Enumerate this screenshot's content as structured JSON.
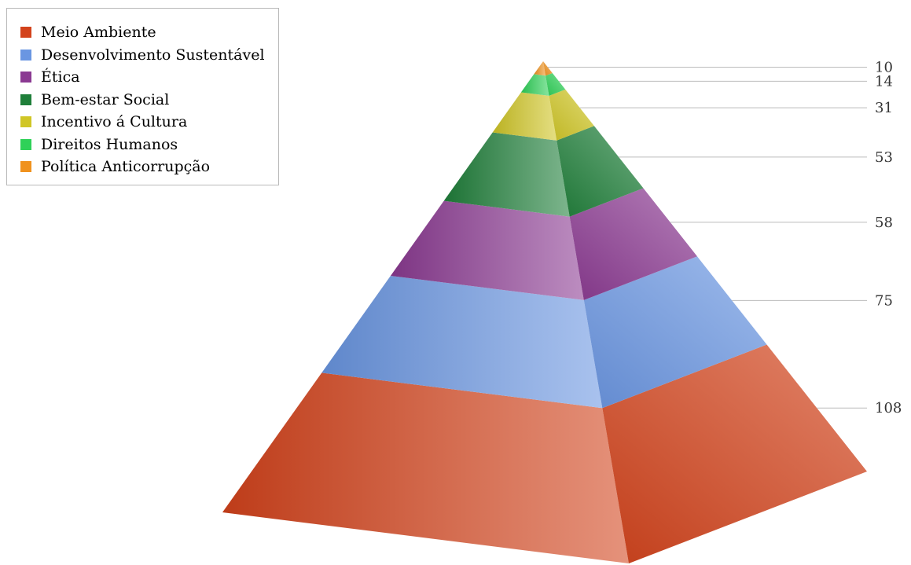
{
  "chart_data": {
    "type": "pyramid",
    "title": "",
    "legend_position": "top-left",
    "categories": [
      "Meio Ambiente",
      "Desenvolvimento Sustentável",
      "Ética",
      "Bem-estar Social",
      "Incentivo á Cultura",
      "Direitos Humanos",
      "Política Anticorrupção"
    ],
    "values": [
      108,
      75,
      58,
      53,
      31,
      14,
      10
    ],
    "colors": [
      "#d3431c",
      "#6a96e2",
      "#8b3a92",
      "#1f7f3a",
      "#d0c626",
      "#2fd158",
      "#f0921e"
    ]
  }
}
